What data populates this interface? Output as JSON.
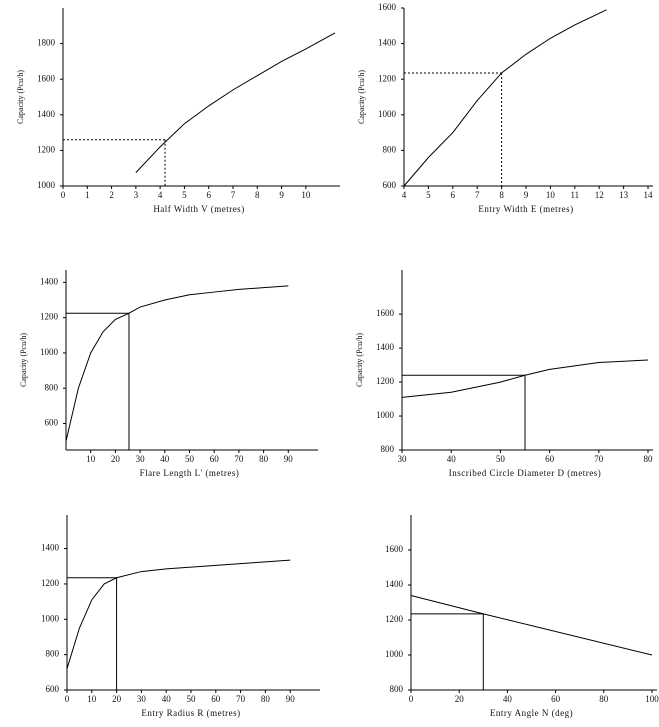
{
  "chart_data": [
    {
      "type": "line",
      "x_label": "Half Width  V  (metres)",
      "y_label": "Capacity (Pcu/h)",
      "xlim": [
        0,
        11.2
      ],
      "ylim": [
        1000,
        2000
      ],
      "xticks": [
        0,
        1,
        2,
        3,
        4,
        5,
        6,
        7,
        8,
        9,
        10
      ],
      "yticks": [
        1000,
        1200,
        1400,
        1600,
        1800
      ],
      "x": [
        3,
        4,
        5,
        6,
        7,
        8,
        9,
        10,
        11.2
      ],
      "values": [
        1075,
        1220,
        1350,
        1450,
        1540,
        1620,
        1700,
        1770,
        1860
      ],
      "color": "#000000",
      "reference": {
        "x": 4.2,
        "y": 1260,
        "style": "dashed"
      }
    },
    {
      "type": "line",
      "x_label": "Entry Width  E  (metres)",
      "y_label": "Capacity (Pcu/h)",
      "xlim": [
        4,
        14
      ],
      "ylim": [
        600,
        1600
      ],
      "xticks": [
        4,
        5,
        6,
        7,
        8,
        9,
        10,
        11,
        12,
        13,
        14
      ],
      "yticks": [
        600,
        800,
        1000,
        1200,
        1400,
        1600
      ],
      "x": [
        4,
        5,
        6,
        7,
        8,
        9,
        10,
        11,
        12.3
      ],
      "values": [
        600,
        760,
        900,
        1080,
        1235,
        1340,
        1430,
        1505,
        1590
      ],
      "color": "#000000",
      "reference": {
        "x": 8,
        "y": 1235,
        "style": "dashed"
      }
    },
    {
      "type": "line",
      "x_label": "Flare Length  L'  (metres)",
      "y_label": "Capacity (Pcu/h)",
      "xlim": [
        0,
        100
      ],
      "ylim": [
        450,
        1470
      ],
      "xticks": [
        10,
        20,
        30,
        40,
        50,
        60,
        70,
        80,
        90
      ],
      "yticks": [
        600,
        800,
        1000,
        1200,
        1400
      ],
      "x": [
        0,
        5,
        10,
        15,
        20,
        25.5,
        30,
        40,
        50,
        60,
        70,
        80,
        90
      ],
      "values": [
        500,
        800,
        1000,
        1120,
        1190,
        1225,
        1260,
        1300,
        1330,
        1345,
        1360,
        1370,
        1380
      ],
      "color": "#000000",
      "reference": {
        "x": 25.5,
        "y": 1225,
        "style": "solid"
      }
    },
    {
      "type": "line",
      "x_label": "Inscribed Circle Diameter  D  (metres)",
      "y_label": "Capacity (Pcu/h)",
      "xlim": [
        30,
        80
      ],
      "ylim": [
        800,
        1860
      ],
      "xticks": [
        30,
        40,
        50,
        60,
        70,
        80
      ],
      "yticks": [
        800,
        1000,
        1200,
        1400,
        1600
      ],
      "x": [
        30,
        40,
        50,
        55,
        60,
        70,
        80
      ],
      "values": [
        1110,
        1140,
        1200,
        1240,
        1275,
        1315,
        1330
      ],
      "color": "#000000",
      "reference": {
        "x": 55,
        "y": 1240,
        "style": "solid"
      }
    },
    {
      "type": "line",
      "x_label": "Entry Radius  R  (metres)",
      "xlim": [
        0,
        100
      ],
      "ylim": [
        600,
        1590
      ],
      "xticks": [
        0,
        10,
        20,
        30,
        40,
        50,
        60,
        70,
        80,
        90
      ],
      "yticks": [
        600,
        800,
        1000,
        1200,
        1400
      ],
      "x": [
        0,
        5,
        10,
        15,
        20,
        30,
        40,
        50,
        60,
        70,
        80,
        90
      ],
      "values": [
        720,
        950,
        1110,
        1200,
        1235,
        1270,
        1285,
        1295,
        1305,
        1315,
        1325,
        1335
      ],
      "color": "#000000",
      "reference": {
        "x": 20,
        "y": 1235,
        "style": "solid"
      }
    },
    {
      "type": "line",
      "x_label": "Entry Angle  N  (deg)",
      "xlim": [
        0,
        100
      ],
      "ylim": [
        800,
        1800
      ],
      "xticks": [
        0,
        20,
        40,
        60,
        80,
        100
      ],
      "yticks": [
        800,
        1000,
        1200,
        1400,
        1600
      ],
      "x": [
        0,
        30,
        100
      ],
      "values": [
        1340,
        1235,
        1000
      ],
      "color": "#000000",
      "reference": {
        "x": 30,
        "y": 1235,
        "style": "solid"
      }
    }
  ]
}
